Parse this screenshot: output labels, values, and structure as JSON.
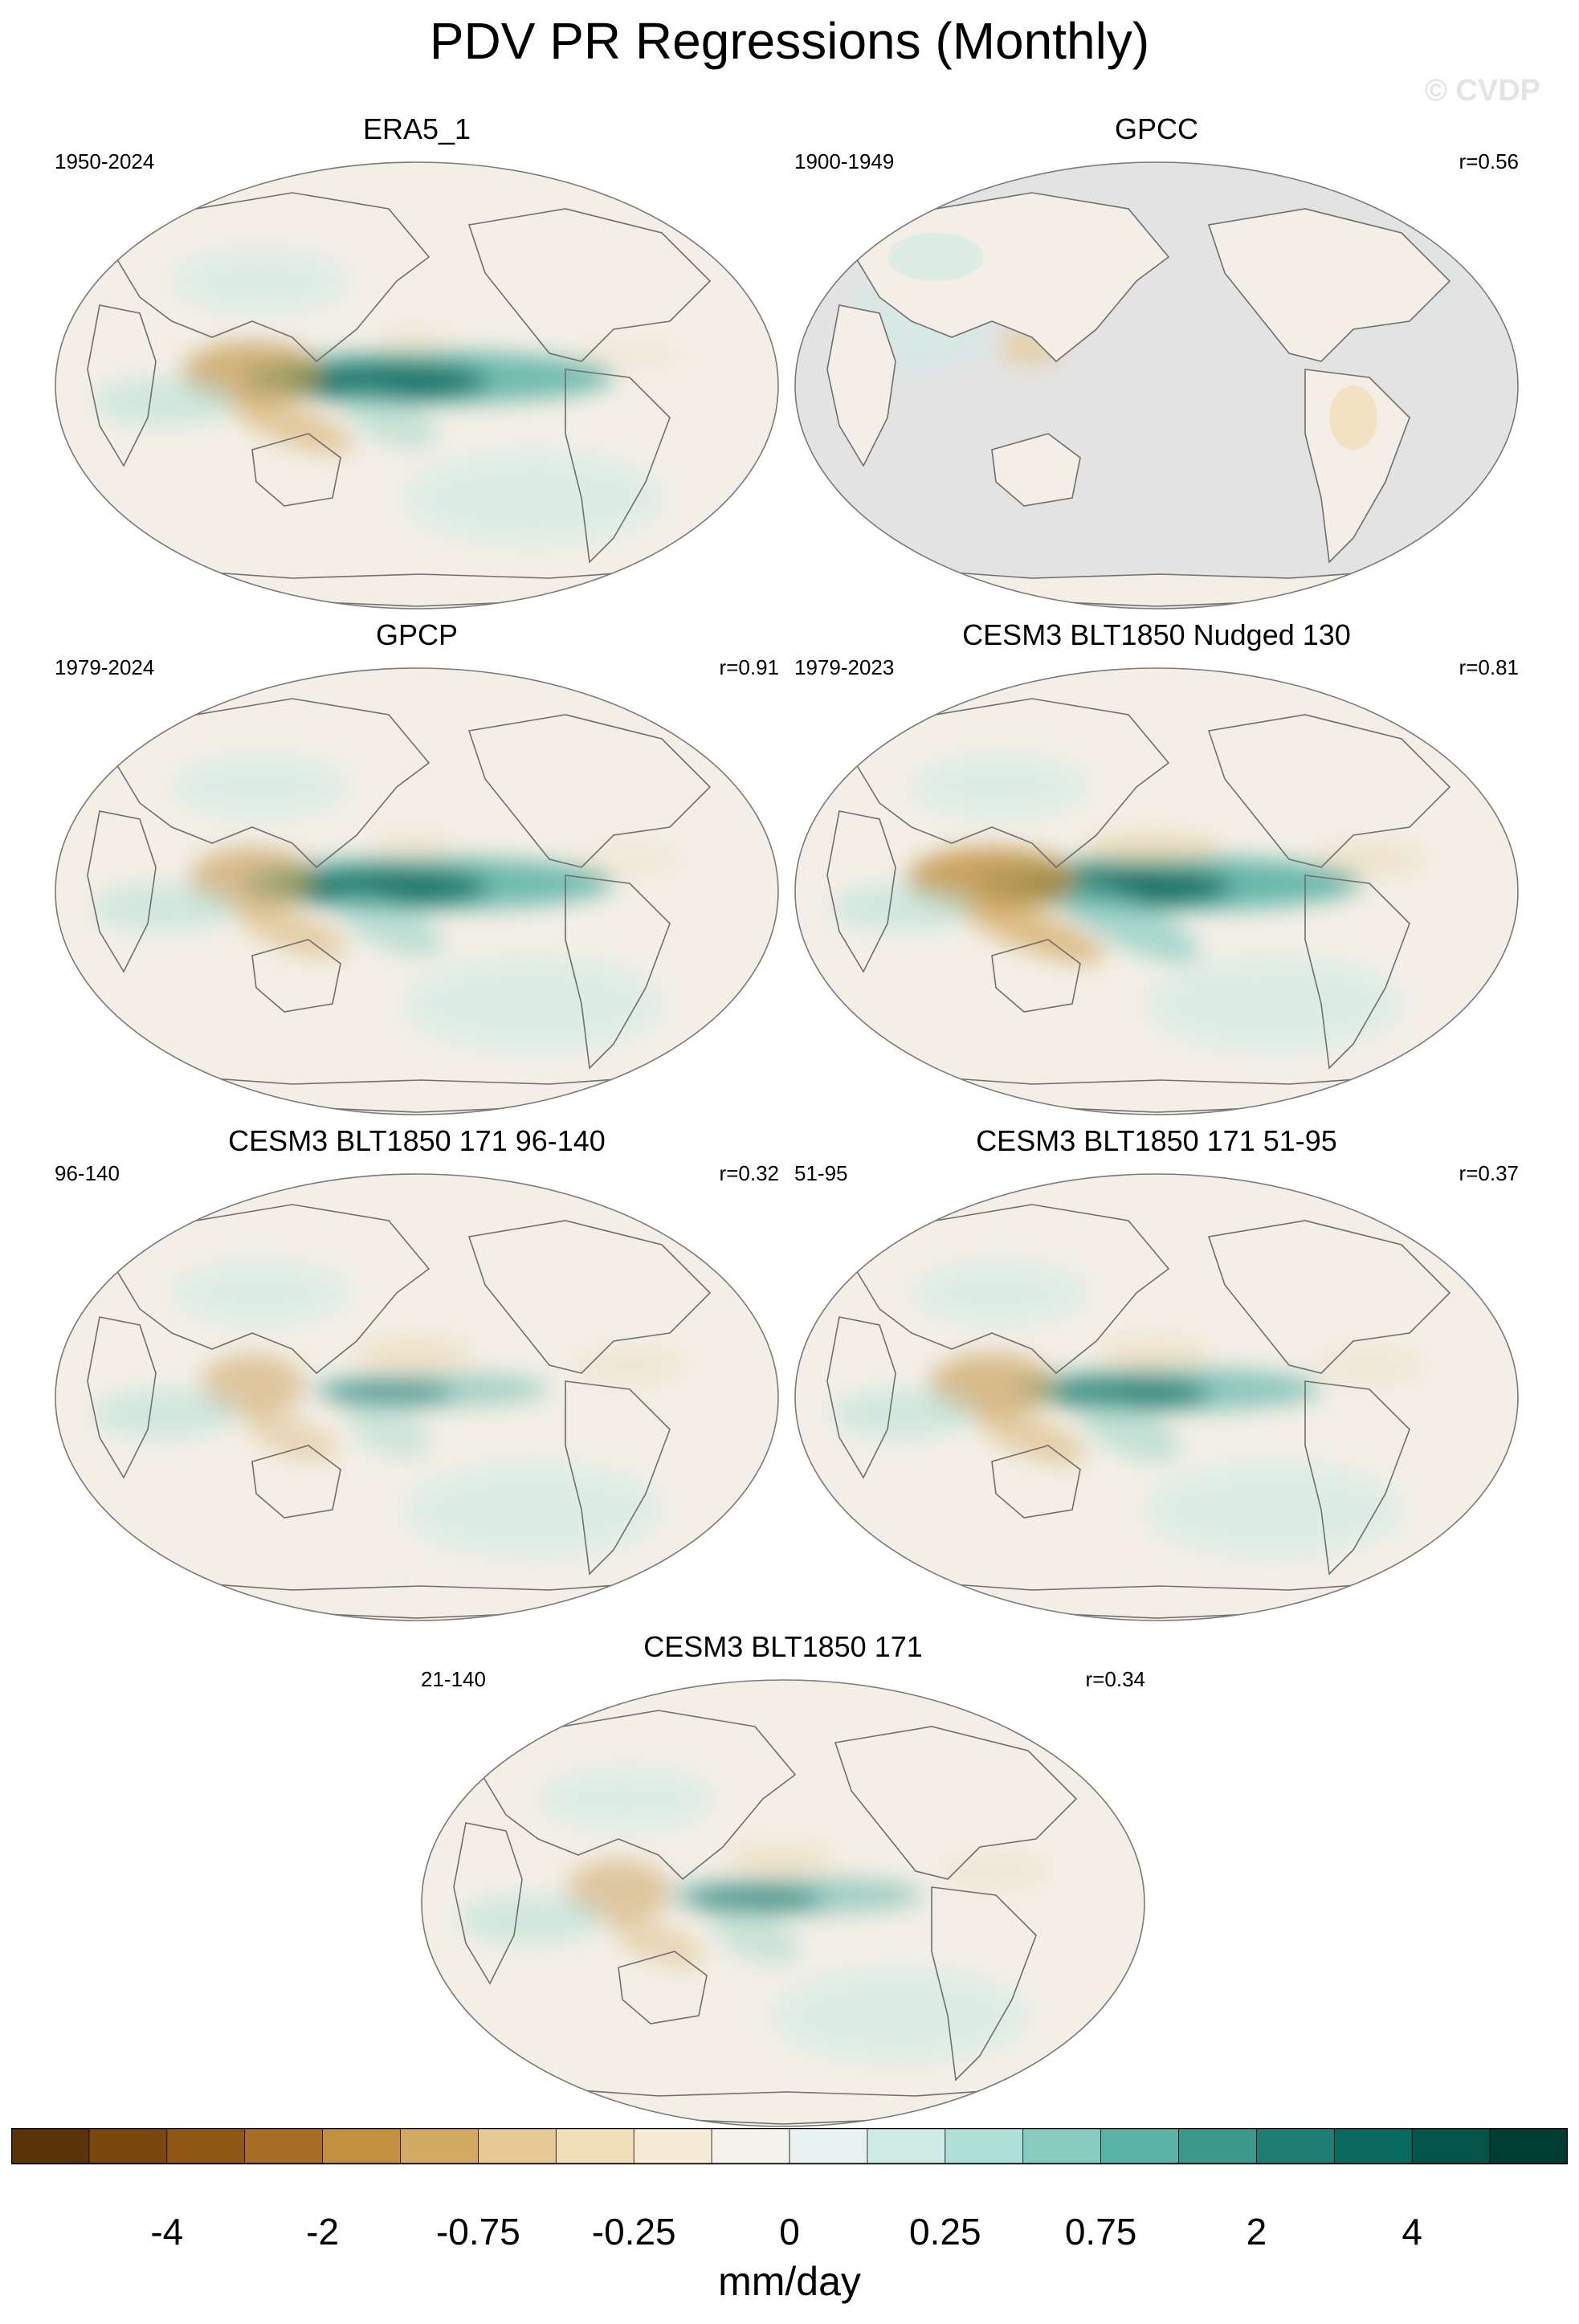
{
  "title": "PDV PR Regressions (Monthly)",
  "watermark": "© CVDP",
  "panels": [
    {
      "title": "ERA5_1",
      "period": "1950-2024",
      "corr": "",
      "ocean": "#f3efe6",
      "missing_ocean": false,
      "pattern": {
        "cp": 0.95,
        "wp": 0.75,
        "spcz": 0.5,
        "nsub": 0.25
      }
    },
    {
      "title": "GPCC",
      "period": "1900-1949",
      "corr": "r=0.56",
      "ocean": "#e3e3e3",
      "missing_ocean": true,
      "pattern": {
        "cp": 0.0,
        "wp": 0.2,
        "spcz": 0.0,
        "nsub": 0.0
      }
    },
    {
      "title": "GPCP",
      "period": "1979-2024",
      "corr": "r=0.91",
      "ocean": "#f3efe6",
      "missing_ocean": false,
      "pattern": {
        "cp": 0.95,
        "wp": 0.65,
        "spcz": 0.6,
        "nsub": 0.3
      }
    },
    {
      "title": "CESM3 BLT1850 Nudged 130",
      "period": "1979-2023",
      "corr": "r=0.81",
      "ocean": "#f3efe6",
      "missing_ocean": false,
      "pattern": {
        "cp": 1.0,
        "wp": 0.95,
        "spcz": 0.85,
        "nsub": 0.6
      }
    },
    {
      "title": "CESM3 BLT1850 171 96-140",
      "period": "96-140",
      "corr": "r=0.32",
      "ocean": "#f3efe6",
      "missing_ocean": false,
      "pattern": {
        "cp": 0.55,
        "wp": 0.5,
        "spcz": 0.4,
        "nsub": 0.5
      }
    },
    {
      "title": "CESM3 BLT1850 171 51-95",
      "period": "51-95",
      "corr": "r=0.37",
      "ocean": "#f3efe6",
      "missing_ocean": false,
      "pattern": {
        "cp": 0.75,
        "wp": 0.65,
        "spcz": 0.55,
        "nsub": 0.45
      }
    },
    {
      "title": "CESM3 BLT1850 171",
      "period": "21-140",
      "corr": "r=0.34",
      "ocean": "#f3efe6",
      "missing_ocean": false,
      "pattern": {
        "cp": 0.6,
        "wp": 0.5,
        "spcz": 0.45,
        "nsub": 0.45
      }
    }
  ],
  "colorbar": {
    "colors": [
      "#5a3408",
      "#7a470d",
      "#8f5614",
      "#a86e26",
      "#c1913f",
      "#d4aa62",
      "#e6c993",
      "#f2dfb9",
      "#f6ecd6",
      "#f4f2ec",
      "#e8f3f1",
      "#cfebe6",
      "#aee0d8",
      "#86ccc0",
      "#5bb3a6",
      "#3d988c",
      "#1f7e74",
      "#0b6a5f",
      "#035449",
      "#023d34"
    ],
    "tick_labels": [
      "-4",
      "-2",
      "-0.75",
      "-0.25",
      "0",
      "0.25",
      "0.75",
      "2",
      "4"
    ],
    "units": "mm/day"
  }
}
